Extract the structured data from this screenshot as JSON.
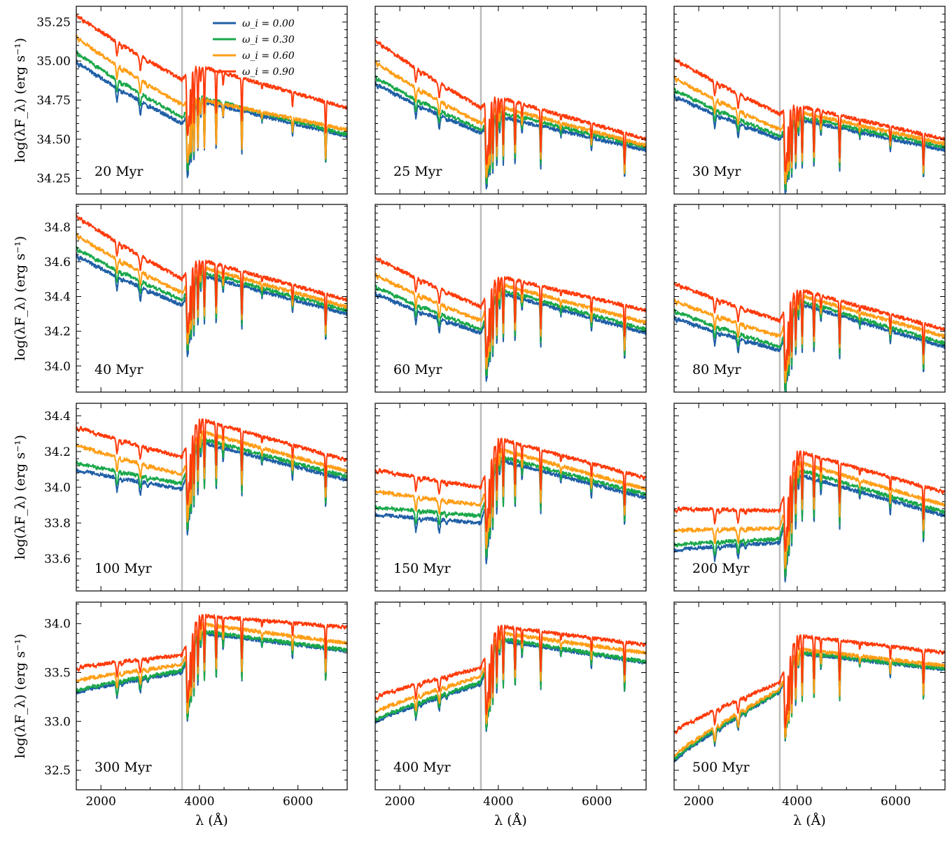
{
  "chart_data": {
    "type": "line",
    "xlabel": "λ (Å)",
    "ylabel": "log(λF_λ) (erg s⁻¹)",
    "xlim": [
      1500,
      7000
    ],
    "x_ticks": [
      2000,
      4000,
      6000
    ],
    "vertical_line_at": 3646,
    "legend": {
      "position": "top-right of first panel",
      "entries": [
        {
          "label": "ω_i = 0.00",
          "color": "#1f5fa6"
        },
        {
          "label": "ω_i = 0.30",
          "color": "#1aa84a"
        },
        {
          "label": "ω_i = 0.60",
          "color": "#ff9e16"
        },
        {
          "label": "ω_i = 0.90",
          "color": "#ff3a0a"
        }
      ]
    },
    "rows": [
      {
        "ylim": [
          34.15,
          35.35
        ],
        "yticks": [
          "34.25",
          "34.50",
          "34.75",
          "35.00",
          "35.25"
        ],
        "ytick_values": [
          34.25,
          34.5,
          34.75,
          35.0,
          35.25
        ]
      },
      {
        "ylim": [
          33.85,
          34.93
        ],
        "yticks": [
          "34.0",
          "34.2",
          "34.4",
          "34.6",
          "34.8"
        ],
        "ytick_values": [
          34.0,
          34.2,
          34.4,
          34.6,
          34.8
        ]
      },
      {
        "ylim": [
          33.42,
          34.47
        ],
        "yticks": [
          "33.6",
          "33.8",
          "34.0",
          "34.2",
          "34.4"
        ],
        "ytick_values": [
          33.6,
          33.8,
          34.0,
          34.2,
          34.4
        ]
      },
      {
        "ylim": [
          32.3,
          34.22
        ],
        "yticks": [
          "32.5",
          "33.0",
          "33.5",
          "34.0"
        ],
        "ytick_values": [
          32.5,
          33.0,
          33.5,
          34.0
        ]
      }
    ],
    "panels": [
      {
        "age": "20 Myr",
        "uv": [
          35.0,
          35.06,
          35.16,
          35.3
        ],
        "uvEnd": [
          34.6,
          34.64,
          34.72,
          34.88
        ],
        "opt": [
          34.77,
          34.8,
          34.78,
          35.0
        ],
        "optEnd": [
          34.52,
          34.53,
          34.56,
          34.7
        ]
      },
      {
        "age": "25 Myr",
        "uv": [
          34.86,
          34.9,
          35.0,
          35.14
        ],
        "uvEnd": [
          34.54,
          34.56,
          34.6,
          34.7
        ],
        "opt": [
          34.67,
          34.7,
          34.74,
          34.8
        ],
        "optEnd": [
          34.43,
          34.45,
          34.46,
          34.5
        ]
      },
      {
        "age": "30 Myr",
        "uv": [
          34.78,
          34.82,
          34.9,
          35.02
        ],
        "uvEnd": [
          34.5,
          34.52,
          34.56,
          34.66
        ],
        "opt": [
          34.65,
          34.67,
          34.7,
          34.74
        ],
        "optEnd": [
          34.43,
          34.45,
          34.47,
          34.5
        ]
      },
      {
        "age": "40 Myr",
        "uv": [
          34.64,
          34.68,
          34.76,
          34.87
        ],
        "uvEnd": [
          34.35,
          34.38,
          34.42,
          34.5
        ],
        "opt": [
          34.55,
          34.57,
          34.6,
          34.64
        ],
        "optEnd": [
          34.3,
          34.32,
          34.34,
          34.38
        ]
      },
      {
        "age": "60 Myr",
        "uv": [
          34.42,
          34.46,
          34.53,
          34.63
        ],
        "uvEnd": [
          34.19,
          34.21,
          34.26,
          34.34
        ],
        "opt": [
          34.45,
          34.47,
          34.5,
          34.54
        ],
        "optEnd": [
          34.19,
          34.21,
          34.25,
          34.32
        ]
      },
      {
        "age": "80 Myr",
        "uv": [
          34.28,
          34.32,
          34.38,
          34.48
        ],
        "uvEnd": [
          34.09,
          34.11,
          34.17,
          34.26
        ],
        "opt": [
          34.39,
          34.41,
          34.44,
          34.47
        ],
        "optEnd": [
          34.11,
          34.13,
          34.17,
          34.21
        ]
      },
      {
        "age": "100 Myr",
        "uv": [
          34.1,
          34.14,
          34.24,
          34.34
        ],
        "uvEnd": [
          33.99,
          34.02,
          34.07,
          34.17
        ],
        "opt": [
          34.28,
          34.3,
          34.34,
          34.41
        ],
        "optEnd": [
          34.04,
          34.06,
          34.09,
          34.15
        ]
      },
      {
        "age": "150 Myr",
        "uv": [
          33.85,
          33.89,
          33.98,
          34.1
        ],
        "uvEnd": [
          33.8,
          33.84,
          33.9,
          34.0
        ],
        "opt": [
          34.18,
          34.2,
          34.24,
          34.3
        ],
        "optEnd": [
          33.94,
          33.96,
          33.99,
          34.05
        ]
      },
      {
        "age": "200 Myr",
        "uv": [
          33.65,
          33.68,
          33.76,
          33.88
        ],
        "uvEnd": [
          33.69,
          33.71,
          33.77,
          33.87
        ],
        "opt": [
          34.1,
          34.13,
          34.17,
          34.23
        ],
        "optEnd": [
          33.84,
          33.86,
          33.9,
          33.97
        ]
      },
      {
        "age": "300 Myr",
        "uv": [
          33.3,
          33.32,
          33.42,
          33.55
        ],
        "uvEnd": [
          33.5,
          33.52,
          33.58,
          33.68
        ],
        "opt": [
          33.93,
          33.95,
          34.02,
          34.1
        ],
        "optEnd": [
          33.72,
          33.73,
          33.8,
          33.96
        ]
      },
      {
        "age": "400 Myr",
        "uv": [
          33.0,
          33.02,
          33.1,
          33.25
        ],
        "uvEnd": [
          33.38,
          33.4,
          33.46,
          33.55
        ],
        "opt": [
          33.86,
          33.88,
          33.93,
          34.0
        ],
        "optEnd": [
          33.6,
          33.61,
          33.7,
          33.78
        ]
      },
      {
        "age": "500 Myr",
        "uv": [
          32.6,
          32.62,
          32.65,
          32.9
        ],
        "uvEnd": [
          33.3,
          33.31,
          33.33,
          33.4
        ],
        "opt": [
          33.72,
          33.73,
          33.76,
          33.9
        ],
        "optEnd": [
          33.53,
          33.54,
          33.57,
          33.7
        ]
      }
    ]
  }
}
